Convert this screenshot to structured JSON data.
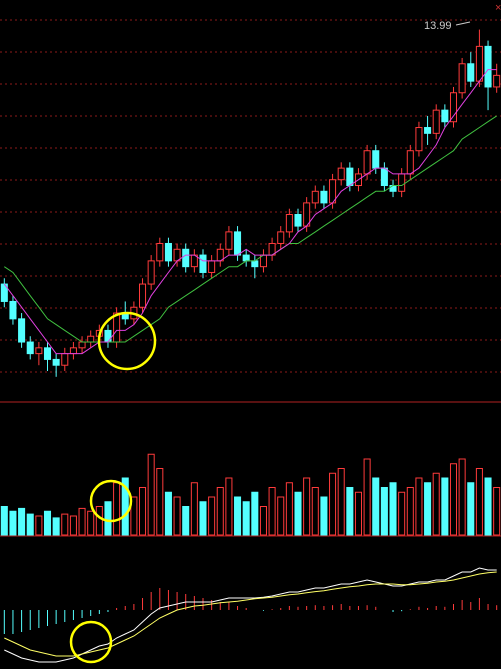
{
  "chart_data": {
    "type": "candlestick",
    "annotation": "13.99",
    "open": [
      9.6,
      9.3,
      9.0,
      8.6,
      8.4,
      8.5,
      8.3,
      8.2,
      8.4,
      8.5,
      8.6,
      8.7,
      8.8,
      8.6,
      9.1,
      9.0,
      9.2,
      9.6,
      10.0,
      10.3,
      10.0,
      10.2,
      9.9,
      10.1,
      9.8,
      10.0,
      10.2,
      10.5,
      10.1,
      10.0,
      9.9,
      10.1,
      10.3,
      10.5,
      10.8,
      10.6,
      11.0,
      11.2,
      11.0,
      11.4,
      11.6,
      11.3,
      11.5,
      11.9,
      11.6,
      11.3,
      11.2,
      11.5,
      11.9,
      12.3,
      12.2,
      12.6,
      12.4,
      12.9,
      13.4,
      13.1,
      13.7,
      13.0
    ],
    "high": [
      9.7,
      9.4,
      9.1,
      8.7,
      8.6,
      8.6,
      8.4,
      8.5,
      8.6,
      8.7,
      8.8,
      8.9,
      8.9,
      9.2,
      9.3,
      9.3,
      9.7,
      10.1,
      10.4,
      10.4,
      10.3,
      10.3,
      10.2,
      10.2,
      10.1,
      10.3,
      10.6,
      10.6,
      10.2,
      10.1,
      10.2,
      10.4,
      10.6,
      10.9,
      10.9,
      11.1,
      11.3,
      11.3,
      11.5,
      11.7,
      11.7,
      11.6,
      12.0,
      12.0,
      11.7,
      11.4,
      11.6,
      12.0,
      12.4,
      12.5,
      12.7,
      12.7,
      13.0,
      13.5,
      13.6,
      13.99,
      13.8,
      13.4
    ],
    "low": [
      9.2,
      8.9,
      8.5,
      8.3,
      8.2,
      8.1,
      8.0,
      8.1,
      8.3,
      8.4,
      8.5,
      8.6,
      8.5,
      8.5,
      8.9,
      8.9,
      9.1,
      9.5,
      9.9,
      9.9,
      9.9,
      9.8,
      9.8,
      9.7,
      9.7,
      9.9,
      10.1,
      10.0,
      9.9,
      9.7,
      9.8,
      10.0,
      10.2,
      10.4,
      10.5,
      10.5,
      10.9,
      10.9,
      10.9,
      11.3,
      11.2,
      11.2,
      11.4,
      11.5,
      11.2,
      11.1,
      11.1,
      11.4,
      11.8,
      12.0,
      12.1,
      12.3,
      12.3,
      12.8,
      13.0,
      13.0,
      12.6,
      12.9
    ],
    "close": [
      9.3,
      9.0,
      8.6,
      8.4,
      8.5,
      8.3,
      8.2,
      8.4,
      8.5,
      8.6,
      8.7,
      8.8,
      8.6,
      9.1,
      9.0,
      9.2,
      9.6,
      10.0,
      10.3,
      10.0,
      10.2,
      9.9,
      10.1,
      9.8,
      10.0,
      10.2,
      10.5,
      10.1,
      10.0,
      9.9,
      10.1,
      10.3,
      10.5,
      10.8,
      10.6,
      11.0,
      11.2,
      11.0,
      11.4,
      11.6,
      11.3,
      11.5,
      11.9,
      11.6,
      11.3,
      11.2,
      11.5,
      11.9,
      12.3,
      12.2,
      12.6,
      12.4,
      12.9,
      13.4,
      13.1,
      13.7,
      13.0,
      13.2
    ],
    "ma_fast": {
      "color": "#e040e0",
      "values": [
        9.6,
        9.4,
        9.2,
        9.0,
        8.8,
        8.6,
        8.4,
        8.4,
        8.4,
        8.4,
        8.5,
        8.6,
        8.6,
        8.8,
        8.8,
        8.9,
        9.1,
        9.4,
        9.6,
        9.8,
        10.0,
        10.1,
        10.1,
        10.0,
        10.0,
        10.0,
        10.1,
        10.1,
        10.2,
        10.1,
        10.1,
        10.1,
        10.2,
        10.3,
        10.5,
        10.6,
        10.8,
        10.9,
        11.0,
        11.2,
        11.3,
        11.4,
        11.5,
        11.6,
        11.6,
        11.5,
        11.5,
        11.5,
        11.6,
        11.8,
        12.0,
        12.3,
        12.5,
        12.7,
        12.9,
        13.1,
        13.3,
        13.3
      ]
    },
    "ma_slow": {
      "color": "#40c040",
      "values": [
        9.9,
        9.8,
        9.6,
        9.4,
        9.2,
        9.0,
        8.9,
        8.8,
        8.7,
        8.6,
        8.6,
        8.6,
        8.6,
        8.6,
        8.6,
        8.7,
        8.8,
        8.9,
        9.0,
        9.2,
        9.3,
        9.4,
        9.5,
        9.6,
        9.7,
        9.8,
        9.9,
        9.9,
        10.0,
        10.0,
        10.1,
        10.1,
        10.2,
        10.3,
        10.3,
        10.4,
        10.5,
        10.6,
        10.7,
        10.8,
        10.9,
        11.0,
        11.1,
        11.2,
        11.2,
        11.3,
        11.3,
        11.4,
        11.5,
        11.6,
        11.7,
        11.8,
        11.9,
        12.1,
        12.2,
        12.3,
        12.4,
        12.5
      ]
    },
    "ylim": [
      7.6,
      14.5
    ],
    "up_color": "#ff3b3b",
    "down_color": "#54ffff",
    "volume": {
      "values": [
        30,
        25,
        28,
        22,
        20,
        25,
        18,
        22,
        20,
        28,
        25,
        30,
        35,
        55,
        60,
        40,
        50,
        85,
        70,
        45,
        40,
        30,
        55,
        35,
        40,
        50,
        60,
        40,
        35,
        45,
        30,
        50,
        40,
        55,
        45,
        60,
        50,
        40,
        65,
        70,
        50,
        45,
        80,
        60,
        50,
        55,
        45,
        50,
        60,
        55,
        65,
        60,
        75,
        80,
        55,
        70,
        60,
        50
      ],
      "ylim": [
        0,
        100
      ]
    },
    "macd": {
      "ylim": [
        -1.5,
        1.5
      ],
      "hist": [
        -0.6,
        -0.6,
        -0.55,
        -0.5,
        -0.45,
        -0.4,
        -0.35,
        -0.3,
        -0.25,
        -0.2,
        -0.15,
        -0.1,
        -0.05,
        0.05,
        0.1,
        0.15,
        0.3,
        0.45,
        0.55,
        0.5,
        0.45,
        0.4,
        0.35,
        0.3,
        0.25,
        0.2,
        0.2,
        0.1,
        0.05,
        0,
        -0.02,
        0.02,
        0.05,
        0.1,
        0.08,
        0.1,
        0.12,
        0.1,
        0.12,
        0.15,
        0.1,
        0.1,
        0.12,
        0.08,
        0,
        -0.05,
        -0.03,
        0.02,
        0.08,
        0.05,
        0.1,
        0.08,
        0.15,
        0.25,
        0.2,
        0.3,
        0.15,
        0.12
      ],
      "dif": {
        "color": "#ffffff",
        "values": [
          -1.0,
          -1.1,
          -1.2,
          -1.25,
          -1.3,
          -1.3,
          -1.3,
          -1.25,
          -1.2,
          -1.1,
          -1.0,
          -0.9,
          -0.85,
          -0.7,
          -0.6,
          -0.5,
          -0.3,
          -0.1,
          0.05,
          0.1,
          0.15,
          0.2,
          0.2,
          0.2,
          0.2,
          0.25,
          0.3,
          0.3,
          0.3,
          0.3,
          0.32,
          0.35,
          0.4,
          0.45,
          0.45,
          0.5,
          0.55,
          0.55,
          0.6,
          0.65,
          0.65,
          0.7,
          0.75,
          0.7,
          0.65,
          0.6,
          0.6,
          0.65,
          0.7,
          0.7,
          0.75,
          0.75,
          0.85,
          0.95,
          0.95,
          1.05,
          1.0,
          1.0
        ]
      },
      "dea": {
        "color": "#ffff66",
        "values": [
          -0.7,
          -0.8,
          -0.9,
          -1.0,
          -1.05,
          -1.1,
          -1.15,
          -1.15,
          -1.15,
          -1.1,
          -1.05,
          -1.0,
          -0.95,
          -0.85,
          -0.75,
          -0.65,
          -0.5,
          -0.35,
          -0.2,
          -0.1,
          0,
          0.05,
          0.1,
          0.12,
          0.15,
          0.18,
          0.2,
          0.22,
          0.25,
          0.28,
          0.3,
          0.32,
          0.35,
          0.38,
          0.4,
          0.43,
          0.46,
          0.48,
          0.52,
          0.55,
          0.58,
          0.6,
          0.63,
          0.65,
          0.65,
          0.65,
          0.63,
          0.63,
          0.65,
          0.67,
          0.7,
          0.72,
          0.75,
          0.8,
          0.85,
          0.9,
          0.93,
          0.95
        ]
      }
    }
  }
}
